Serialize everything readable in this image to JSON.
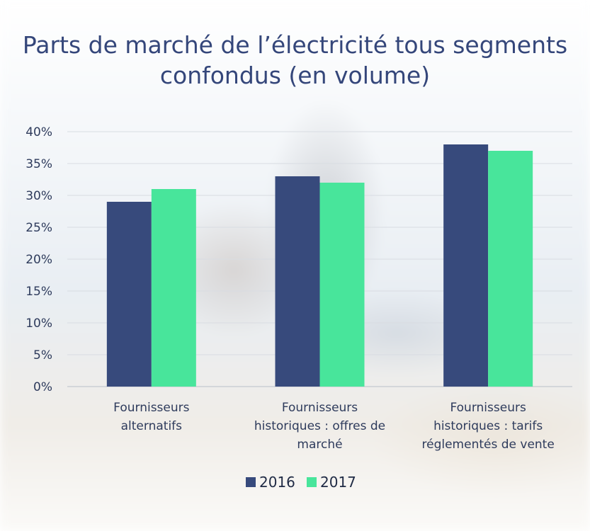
{
  "chart_data": {
    "type": "bar",
    "title": "Parts de marché de l’électricité tous segments confondus (en volume)",
    "categories": [
      "Fournisseurs alternatifs",
      "Fournisseurs historiques : offres de marché",
      "Fournisseurs historiques : tarifs réglementés de vente"
    ],
    "series": [
      {
        "name": "2016",
        "values": [
          29,
          33,
          38
        ],
        "color": "#374a7c"
      },
      {
        "name": "2017",
        "values": [
          31,
          32,
          37
        ],
        "color": "#48e59b"
      }
    ],
    "yticks": [
      "0%",
      "5%",
      "10%",
      "15%",
      "20%",
      "25%",
      "30%",
      "35%",
      "40%"
    ],
    "ylim": [
      0,
      40
    ],
    "grid": true,
    "legend_position": "bottom"
  }
}
